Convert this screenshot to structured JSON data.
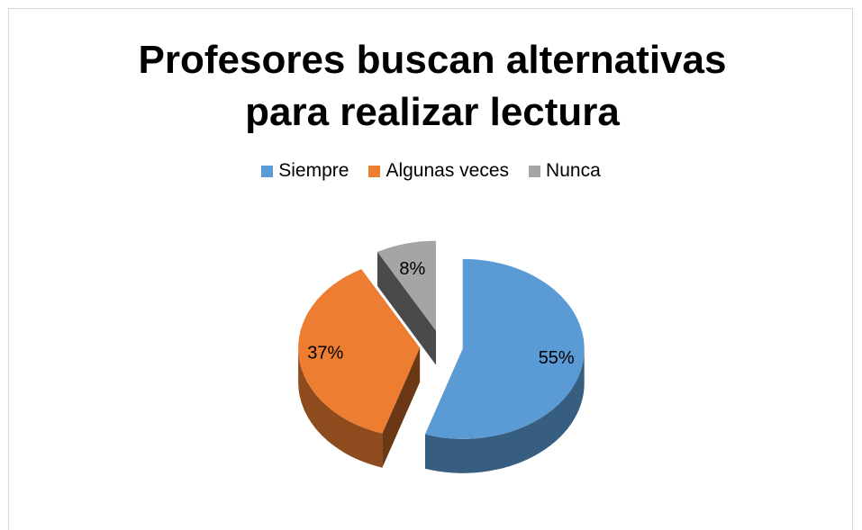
{
  "chart_data": {
    "type": "pie",
    "title": "Profesores buscan alternativas para realizar lectura",
    "categories": [
      "Siempre",
      "Algunas veces",
      "Nunca"
    ],
    "values": [
      55,
      37,
      8
    ],
    "value_labels": [
      "55%",
      "37%",
      "8%"
    ],
    "colors": [
      "#5b9bd5",
      "#ed7d31",
      "#a5a5a5"
    ],
    "legend": "top"
  }
}
